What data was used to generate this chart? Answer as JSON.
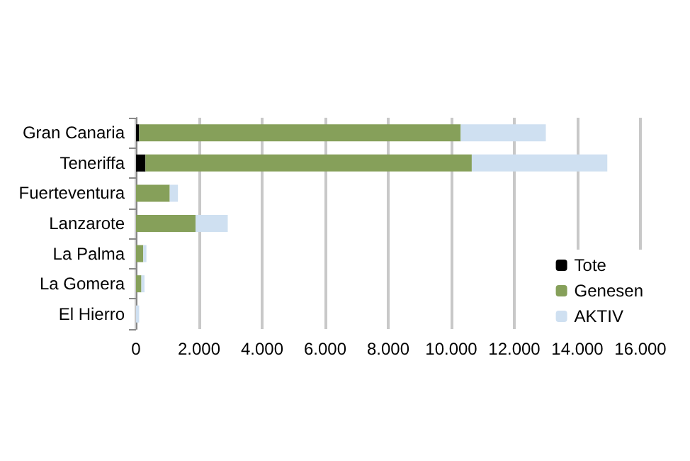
{
  "chart_data": {
    "type": "bar",
    "orientation": "horizontal",
    "stacked": true,
    "categories": [
      "Gran Canaria",
      "Teneriffa",
      "Fuerteventura",
      "Lanzarote",
      "La Palma",
      "La Gomera",
      "El Hierro"
    ],
    "series": [
      {
        "name": "Tote",
        "color": "#000000",
        "values": [
          100,
          300,
          null,
          null,
          null,
          null,
          null
        ]
      },
      {
        "name": "Genesen",
        "color": "#86a05a",
        "values": [
          10200,
          10350,
          1070,
          1890,
          230,
          170,
          null
        ]
      },
      {
        "name": "AKTIV",
        "color": "#cfe0f1",
        "values": [
          2700,
          4300,
          260,
          1020,
          100,
          100,
          100
        ]
      }
    ],
    "xlim": [
      0,
      16000
    ],
    "xticks": [
      {
        "value": 0,
        "label": "0"
      },
      {
        "value": 2000,
        "label": "2.000"
      },
      {
        "value": 4000,
        "label": "4.000"
      },
      {
        "value": 6000,
        "label": "6.000"
      },
      {
        "value": 8000,
        "label": "8.000"
      },
      {
        "value": 10000,
        "label": "10.000"
      },
      {
        "value": 12000,
        "label": "12.000"
      },
      {
        "value": 14000,
        "label": "14.000"
      },
      {
        "value": 16000,
        "label": "16.000"
      }
    ],
    "grid": "x",
    "legend": "right"
  }
}
